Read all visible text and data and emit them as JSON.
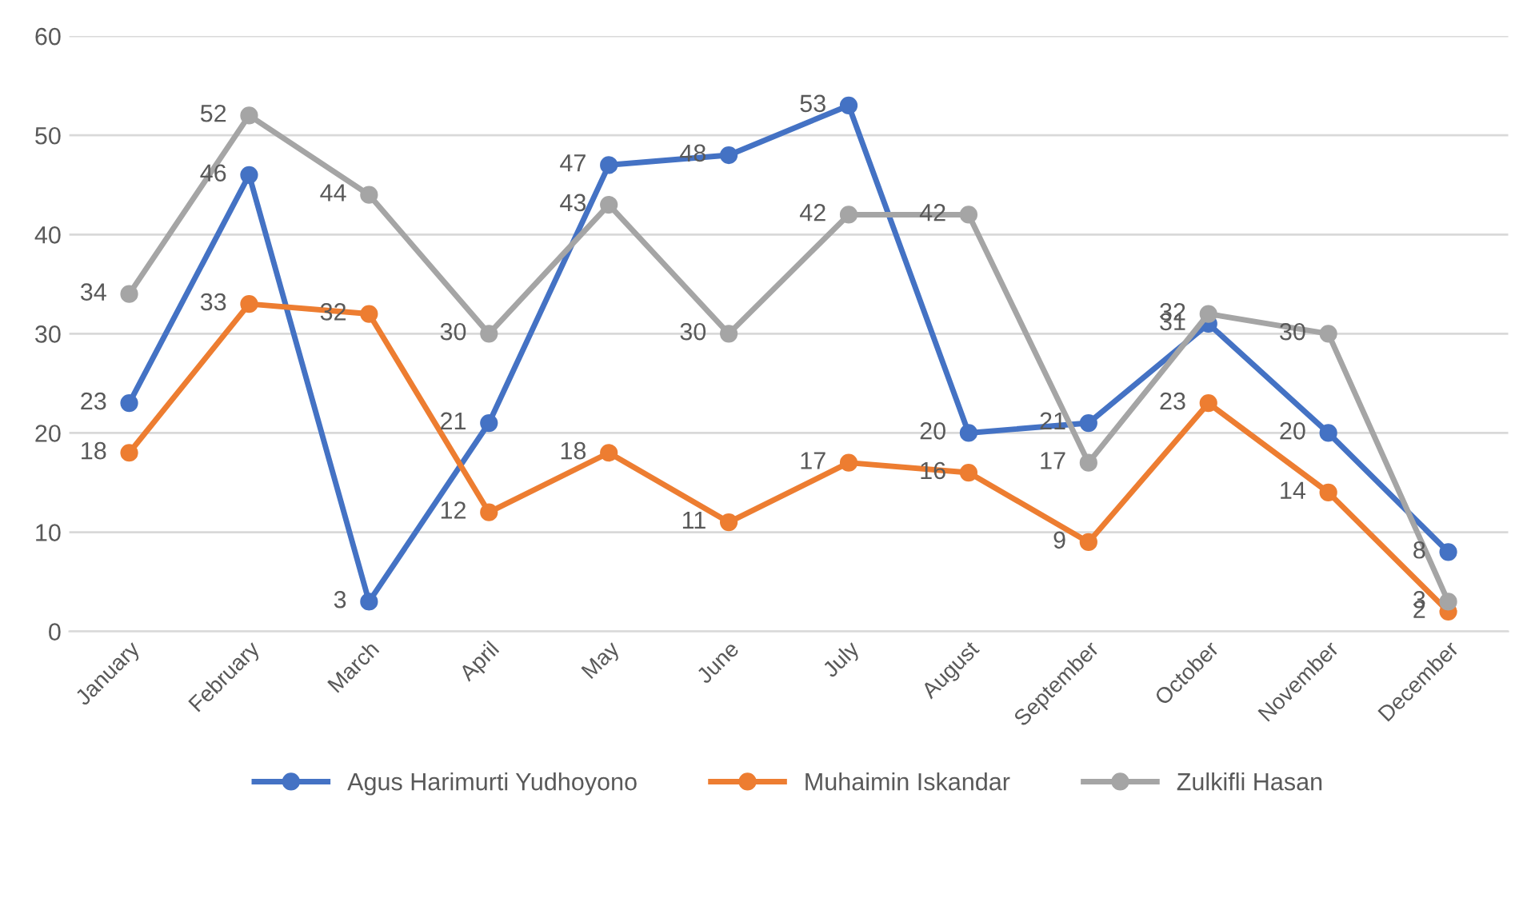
{
  "chart_data": {
    "type": "line",
    "categories": [
      "January",
      "February",
      "March",
      "April",
      "May",
      "June",
      "July",
      "August",
      "September",
      "October",
      "November",
      "December"
    ],
    "series": [
      {
        "name": "Agus Harimurti Yudhoyono",
        "color": "#4472c4",
        "values": [
          23,
          46,
          3,
          21,
          47,
          48,
          53,
          20,
          21,
          31,
          20,
          8
        ]
      },
      {
        "name": "Muhaimin Iskandar",
        "color": "#ed7d31",
        "values": [
          18,
          33,
          32,
          12,
          18,
          11,
          17,
          16,
          9,
          23,
          14,
          2
        ]
      },
      {
        "name": "Zulkifli Hasan",
        "color": "#a5a5a5",
        "values": [
          34,
          52,
          44,
          30,
          43,
          30,
          42,
          42,
          17,
          32,
          30,
          3
        ]
      }
    ],
    "ylim": [
      0,
      60
    ],
    "yticks": [
      0,
      10,
      20,
      30,
      40,
      50,
      60
    ],
    "grid": "y",
    "legend": "bottom",
    "marker": "circle",
    "line_style": "solid",
    "data_labels": true
  }
}
